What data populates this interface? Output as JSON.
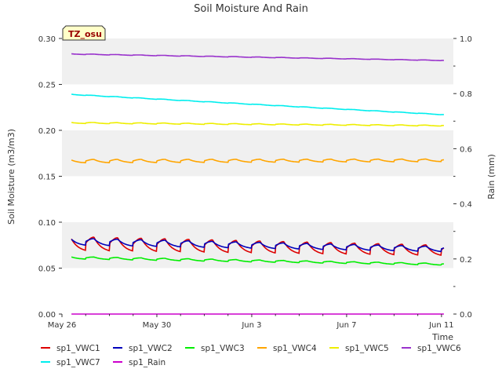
{
  "chart_data": {
    "type": "line",
    "title": "Soil Moisture And Rain",
    "xlabel": "Time",
    "ylabel": "Soil Moisture (m3/m3)",
    "y2label": "Rain (mm)",
    "site_badge": "TZ_osu",
    "x_range_days": [
      0,
      16.5
    ],
    "ylim": [
      0.0,
      0.3
    ],
    "y2lim": [
      0.0,
      1.0
    ],
    "y_ticks": [
      0.0,
      0.05,
      0.1,
      0.15,
      0.2,
      0.25,
      0.3
    ],
    "y_tick_labels": [
      "0.00",
      "0.05",
      "0.10",
      "0.15",
      "0.20",
      "0.25",
      "0.30"
    ],
    "y2_ticks": [
      0.0,
      0.2,
      0.4,
      0.6,
      0.8,
      1.0
    ],
    "y2_tick_labels": [
      "0.0",
      "0.2",
      "0.4",
      "0.6",
      "0.8",
      "1.0"
    ],
    "x_ticks": [
      0,
      4,
      8,
      12,
      16
    ],
    "x_tick_labels": [
      "May 26",
      "May 30",
      "Jun 3",
      "Jun 7",
      "Jun 11"
    ],
    "grid_bands": true,
    "legend_position": "bottom",
    "series": [
      {
        "name": "sp1_VWC1",
        "color": "#dd0000",
        "axis": "left",
        "base_start": 0.075,
        "base_end": 0.068,
        "diurnal_amp": 0.012,
        "peak": 0.094
      },
      {
        "name": "sp1_VWC2",
        "color": "#0000bb",
        "axis": "left",
        "base_start": 0.078,
        "base_end": 0.07,
        "diurnal_amp": 0.006,
        "peak": 0.085
      },
      {
        "name": "sp1_VWC3",
        "color": "#00ee00",
        "axis": "left",
        "base_start": 0.061,
        "base_end": 0.054,
        "diurnal_amp": 0.002,
        "peak": 0.063
      },
      {
        "name": "sp1_VWC4",
        "color": "#ffa500",
        "axis": "left",
        "base_start": 0.166,
        "base_end": 0.167,
        "diurnal_amp": 0.003,
        "peak": 0.171
      },
      {
        "name": "sp1_VWC5",
        "color": "#eeee00",
        "axis": "left",
        "base_start": 0.208,
        "base_end": 0.205,
        "diurnal_amp": 0.001,
        "peak": 0.209
      },
      {
        "name": "sp1_VWC6",
        "color": "#9932cc",
        "axis": "left",
        "base_start": 0.283,
        "base_end": 0.276,
        "diurnal_amp": 0.0005,
        "peak": 0.284
      },
      {
        "name": "sp1_VWC7",
        "color": "#00eeee",
        "axis": "left",
        "base_start": 0.239,
        "base_end": 0.217,
        "diurnal_amp": 0.0005,
        "peak": 0.239
      },
      {
        "name": "sp1_Rain",
        "color": "#cc00cc",
        "axis": "right",
        "base_start": 0.0,
        "base_end": 0.0,
        "diurnal_amp": 0.0,
        "peak": 0.0
      }
    ]
  }
}
